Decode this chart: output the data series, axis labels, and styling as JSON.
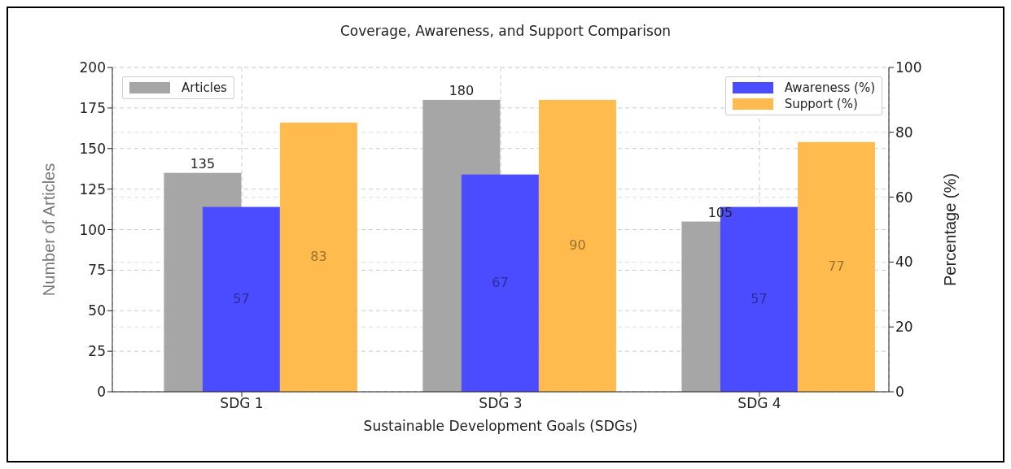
{
  "chart_data": {
    "type": "bar",
    "title": "Coverage, Awareness, and Support Comparison",
    "xlabel": "Sustainable Development Goals (SDGs)",
    "ylabel": "Number of Articles",
    "y2label": "Percentage (%)",
    "categories": [
      "SDG 1",
      "SDG 3",
      "SDG 4"
    ],
    "series": [
      {
        "name": "Articles",
        "color": "#a6a6a6",
        "values": [
          135,
          180,
          105
        ],
        "axis": "y"
      },
      {
        "name": "Awareness (%)",
        "color": "#4b4bff",
        "values": [
          57,
          67,
          57
        ],
        "axis": "y2"
      },
      {
        "name": "Support (%)",
        "color": "#ffbb4d",
        "values": [
          83,
          90,
          77
        ],
        "axis": "y2"
      }
    ],
    "ylim": [
      0,
      200
    ],
    "yticks": [
      0,
      25,
      50,
      75,
      100,
      125,
      150,
      175,
      200
    ],
    "y2lim": [
      0,
      100
    ],
    "y2ticks": [
      0,
      20,
      40,
      60,
      80,
      100
    ],
    "data_labels": true,
    "grid": true,
    "legend": "top right"
  }
}
